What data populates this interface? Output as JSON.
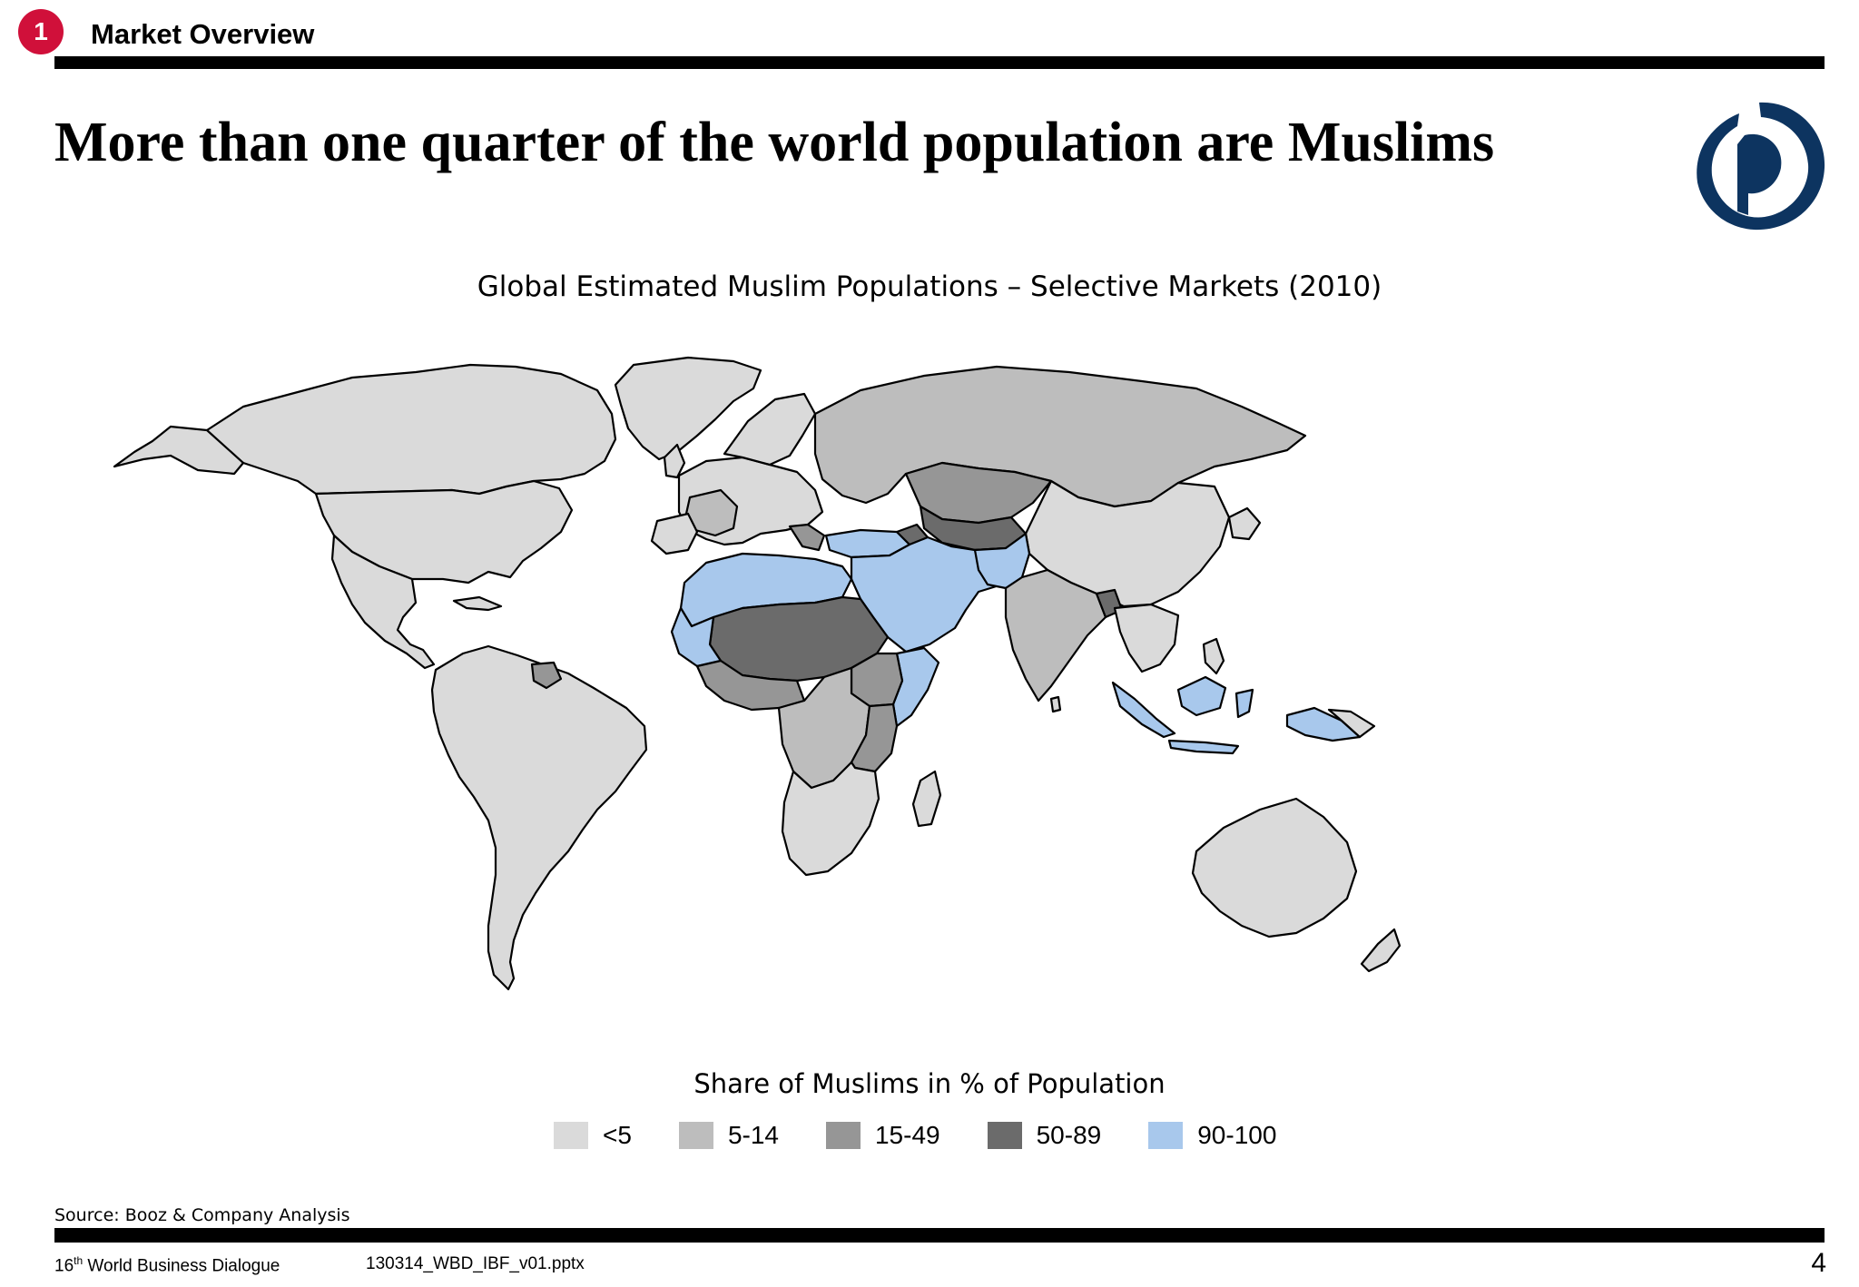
{
  "header": {
    "badge": "1",
    "section": "Market Overview",
    "title": "More than one quarter of the world population are Muslims"
  },
  "map": {
    "title": "Global Estimated Muslim Populations – Selective Markets (2010)",
    "legend_title": "Share of Muslims in % of Population",
    "legend": [
      {
        "label": "<5",
        "color": "#dadada"
      },
      {
        "label": "5-14",
        "color": "#bdbdbd"
      },
      {
        "label": "15-49",
        "color": "#969696"
      },
      {
        "label": "50-89",
        "color": "#6b6b6b"
      },
      {
        "label": "90-100",
        "color": "#a8c8ec"
      }
    ]
  },
  "footer": {
    "source": "Source: Booz & Company Analysis",
    "event_prefix": "16",
    "event_sup": "th",
    "event_suffix": " World Business Dialogue",
    "file": "130314_WBD_IBF_v01.pptx",
    "page": "4"
  }
}
